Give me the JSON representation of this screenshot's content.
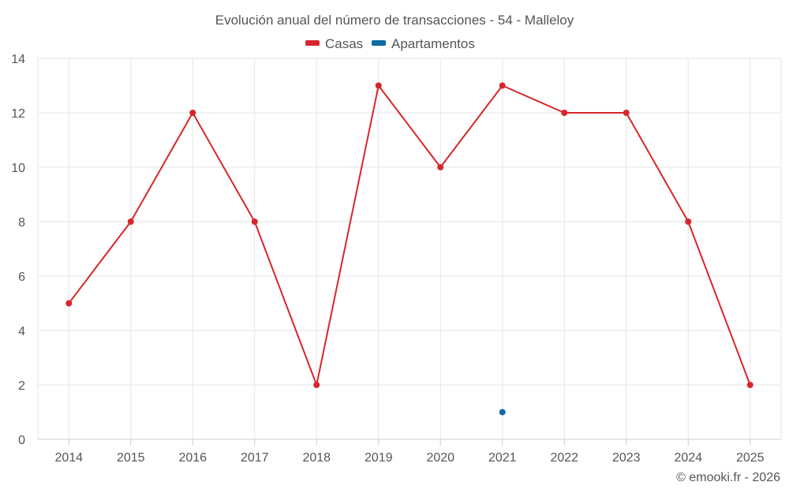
{
  "chart_data": {
    "type": "line",
    "title": "Evolución anual del número de transacciones - 54 - Malleloy",
    "categories": [
      "2014",
      "2015",
      "2016",
      "2017",
      "2018",
      "2019",
      "2020",
      "2021",
      "2022",
      "2023",
      "2024",
      "2025"
    ],
    "series": [
      {
        "name": "Casas",
        "color": "#d7262b",
        "values": [
          5,
          8,
          12,
          8,
          2,
          13,
          10,
          13,
          12,
          12,
          8,
          2
        ]
      },
      {
        "name": "Apartamentos",
        "color": "#0f6aa6",
        "values": [
          null,
          null,
          null,
          null,
          null,
          null,
          null,
          1,
          null,
          null,
          null,
          null
        ]
      }
    ],
    "xlabel": "",
    "ylabel": "",
    "ylim": [
      0,
      14
    ],
    "yticks": [
      "0",
      "2",
      "4",
      "6",
      "8",
      "10",
      "12",
      "14"
    ],
    "grid": true,
    "legend": "top-center",
    "credit": "© emooki.fr - 2026"
  }
}
